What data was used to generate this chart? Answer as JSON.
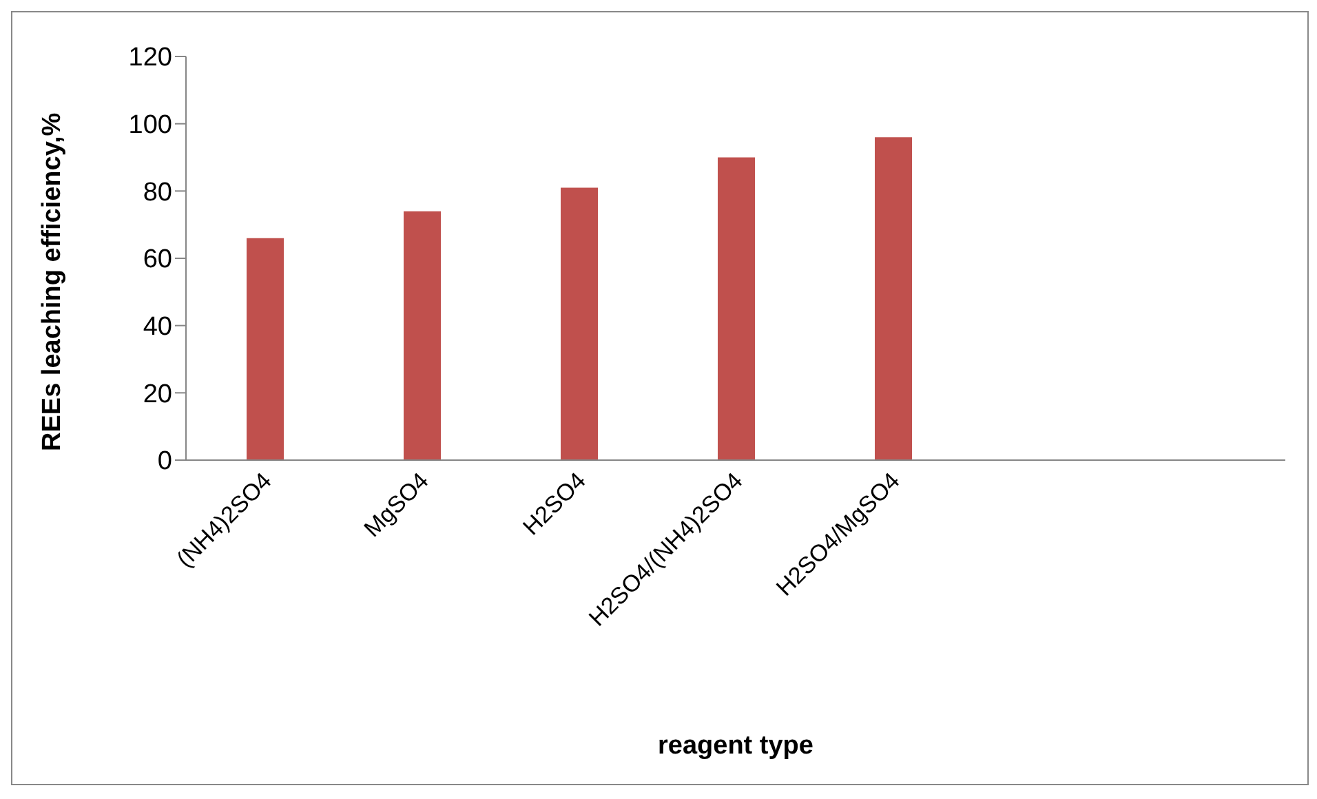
{
  "chart_data": {
    "type": "bar",
    "xlabel": "reagent type",
    "ylabel": "REEs leaching efficiency,%",
    "categories": [
      "(NH4)2SO4",
      "MgSO4",
      "H2SO4",
      "H2SO4/(NH4)2SO4",
      "H2SO4/MgSO4",
      null,
      null
    ],
    "values": [
      66,
      74,
      81,
      90,
      96,
      null,
      null
    ],
    "color": "#c0504d",
    "ylim": [
      0,
      120
    ],
    "yticks": [
      0,
      20,
      40,
      60,
      80,
      100,
      120
    ],
    "grid": false,
    "legend": false
  }
}
